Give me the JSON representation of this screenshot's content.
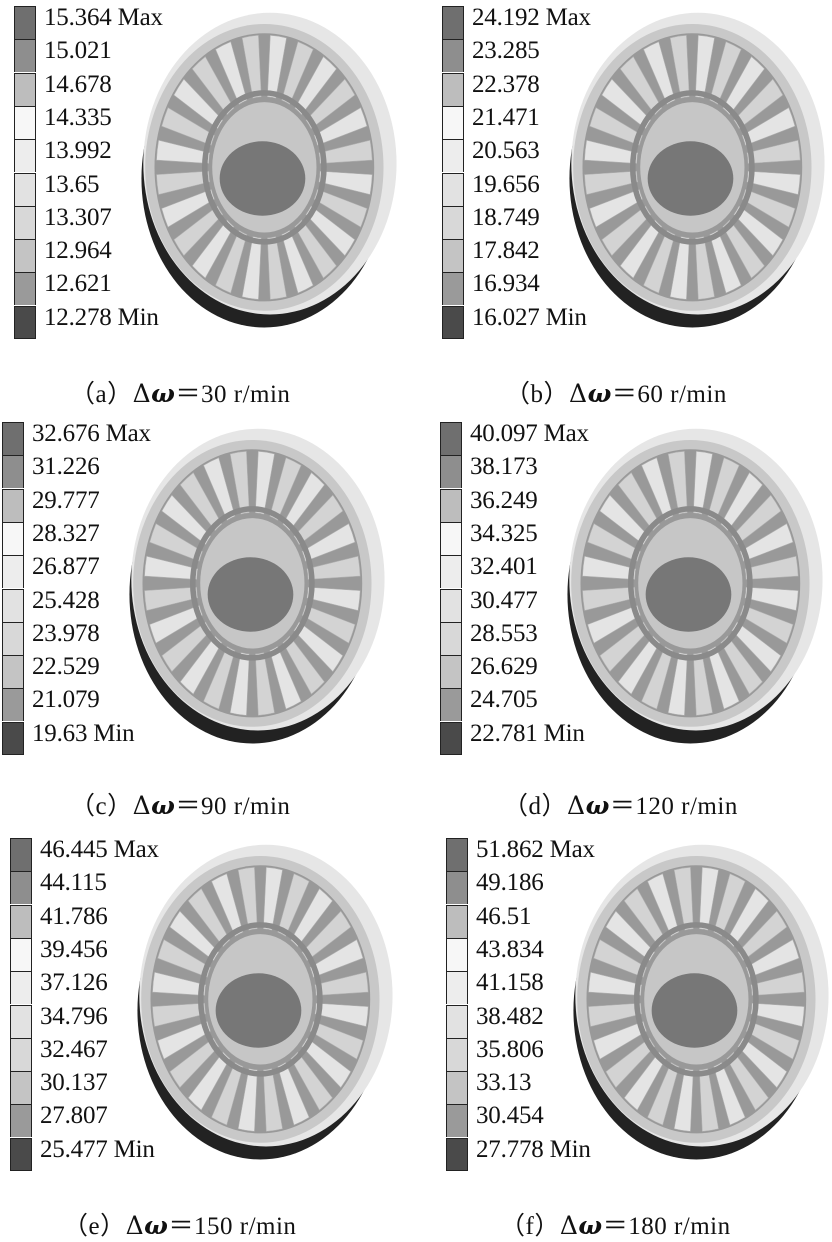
{
  "panels": [
    {
      "id": "a",
      "legend": [
        "15.364 Max",
        "15.021",
        "14.678",
        "14.335",
        "13.992",
        "13.65",
        "13.307",
        "12.964",
        "12.621",
        "12.278 Min"
      ],
      "caption": {
        "tag": "（a）",
        "delta": "Δ",
        "omega": "ω",
        "eq": "＝",
        "value": "30 r/min"
      }
    },
    {
      "id": "b",
      "legend": [
        "24.192 Max",
        "23.285",
        "22.378",
        "21.471",
        "20.563",
        "19.656",
        "18.749",
        "17.842",
        "16.934",
        "16.027 Min"
      ],
      "caption": {
        "tag": "（b）",
        "delta": "Δ",
        "omega": "ω",
        "eq": "＝",
        "value": "60 r/min"
      }
    },
    {
      "id": "c",
      "legend": [
        "32.676 Max",
        "31.226",
        "29.777",
        "28.327",
        "26.877",
        "25.428",
        "23.978",
        "22.529",
        "21.079",
        "19.63 Min"
      ],
      "caption": {
        "tag": "（c）",
        "delta": "Δ",
        "omega": "ω",
        "eq": "＝",
        "value": "90 r/min"
      }
    },
    {
      "id": "d",
      "legend": [
        "40.097 Max",
        "38.173",
        "36.249",
        "34.325",
        "32.401",
        "30.477",
        "28.553",
        "26.629",
        "24.705",
        "22.781 Min"
      ],
      "caption": {
        "tag": "（d）",
        "delta": "Δ",
        "omega": "ω",
        "eq": "＝",
        "value": "120 r/min"
      }
    },
    {
      "id": "e",
      "legend": [
        "46.445 Max",
        "44.115",
        "41.786",
        "39.456",
        "37.126",
        "34.796",
        "32.467",
        "30.137",
        "27.807",
        "25.477 Min"
      ],
      "caption": {
        "tag": "（e）",
        "delta": "Δ",
        "omega": "ω",
        "eq": "＝",
        "value": "150 r/min"
      }
    },
    {
      "id": "f",
      "legend": [
        "51.862 Max",
        "49.186",
        "46.51",
        "43.834",
        "41.158",
        "38.482",
        "35.806",
        "33.13",
        "30.454",
        "27.778 Min"
      ],
      "caption": {
        "tag": "（f）",
        "delta": "Δ",
        "omega": "ω",
        "eq": "＝",
        "value": "180 r/min"
      }
    }
  ],
  "legend_colors": [
    "#6f6f6f",
    "#8e8e8e",
    "#bdbdbd",
    "#f7f7f7",
    "#ededed",
    "#e2e2e2",
    "#d8d8d8",
    "#c4c4c4",
    "#9a9a9a",
    "#4a4a4a"
  ],
  "render_colors": {
    "outer_shadow": "#e6e6e6",
    "outer_ring": "#c8c8c8",
    "slot": "#999999",
    "tooth": "#d3d3d3",
    "tooth_light": "#e4e4e4",
    "inner_ring": "#c6c6c6",
    "inner_edge": "#8a8a8a",
    "bore": "#777777",
    "base": "#222222"
  }
}
